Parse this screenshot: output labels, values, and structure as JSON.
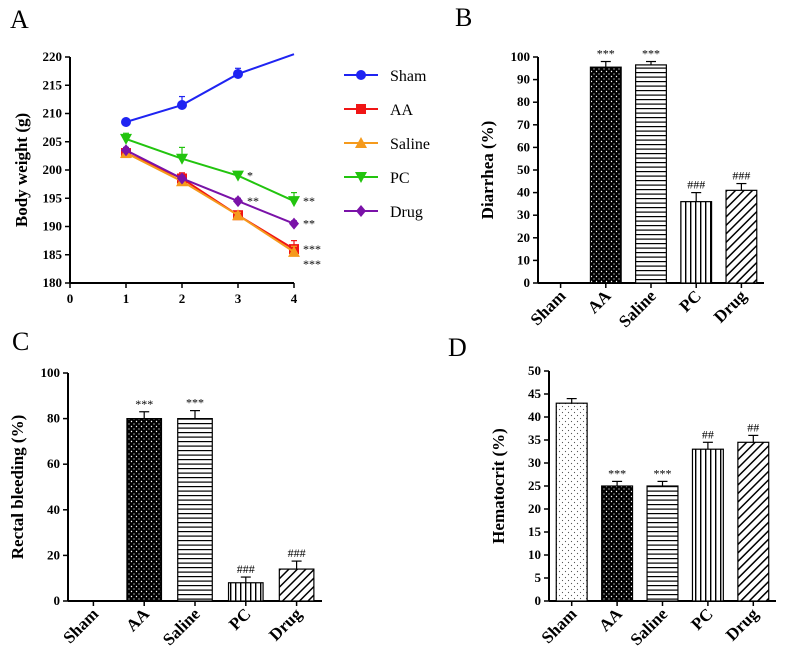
{
  "colors": {
    "Sham": "#1f24f2",
    "AA": "#f01515",
    "Saline": "#f59a1c",
    "PC": "#22c40e",
    "Drug": "#7a12a8"
  },
  "chart_data": [
    {
      "panel": "A",
      "type": "line",
      "ylabel": "Body weight (g)",
      "xlabel": "",
      "x": [
        1,
        2,
        3,
        4
      ],
      "xlim": [
        0,
        4
      ],
      "xticks": [
        "0",
        "1",
        "2",
        "3",
        "4"
      ],
      "ylim": [
        180,
        220
      ],
      "yticks": [
        "180",
        "185",
        "190",
        "195",
        "200",
        "205",
        "210",
        "215",
        "220"
      ],
      "series": [
        {
          "name": "Sham",
          "marker": "circle",
          "values": [
            208.5,
            211.5,
            217,
            220.5
          ],
          "errors": [
            0.5,
            1.5,
            1,
            0
          ],
          "sig": [
            "",
            "",
            "",
            ""
          ]
        },
        {
          "name": "AA",
          "marker": "square",
          "values": [
            203,
            198.5,
            192,
            186
          ],
          "errors": [
            0.5,
            1,
            0.5,
            1.5
          ],
          "sig": [
            "",
            "",
            "",
            "***"
          ]
        },
        {
          "name": "Saline",
          "marker": "triangle-up",
          "values": [
            203,
            198,
            192,
            185.5
          ],
          "errors": [
            0.5,
            0.5,
            0.5,
            1
          ],
          "sig": [
            "",
            "",
            "",
            "***"
          ]
        },
        {
          "name": "PC",
          "marker": "triangle-down",
          "values": [
            205.5,
            202,
            199,
            194.5
          ],
          "errors": [
            1,
            2,
            0.5,
            1.5
          ],
          "sig": [
            "",
            "",
            "*",
            "**"
          ]
        },
        {
          "name": "Drug",
          "marker": "diamond",
          "values": [
            203.5,
            198.5,
            194.5,
            190.5
          ],
          "errors": [
            0.5,
            0.5,
            0.5,
            0.5
          ],
          "sig": [
            "",
            "",
            "**",
            "**"
          ]
        }
      ]
    },
    {
      "panel": "B",
      "type": "bar",
      "ylabel": "Diarrhea (%)",
      "categories": [
        "Sham",
        "AA",
        "Saline",
        "PC",
        "Drug"
      ],
      "values": [
        0,
        95.5,
        96.5,
        36,
        41
      ],
      "errors": [
        0,
        2.5,
        1.5,
        4,
        3
      ],
      "sig": [
        "",
        "***",
        "***",
        "###",
        "###"
      ],
      "ylim": [
        0,
        100
      ],
      "yticks": [
        "0",
        "10",
        "20",
        "30",
        "40",
        "50",
        "60",
        "70",
        "80",
        "90",
        "100"
      ]
    },
    {
      "panel": "C",
      "type": "bar",
      "ylabel": "Rectal bleeding (%)",
      "categories": [
        "Sham",
        "AA",
        "Saline",
        "PC",
        "Drug"
      ],
      "values": [
        0,
        80,
        80,
        8,
        14
      ],
      "errors": [
        0,
        3,
        3.5,
        2.5,
        3.5
      ],
      "sig": [
        "",
        "***",
        "***",
        "###",
        "###"
      ],
      "ylim": [
        0,
        100
      ],
      "yticks": [
        "0",
        "20",
        "40",
        "60",
        "80",
        "100"
      ]
    },
    {
      "panel": "D",
      "type": "bar",
      "ylabel": "Hematocrit (%)",
      "categories": [
        "Sham",
        "AA",
        "Saline",
        "PC",
        "Drug"
      ],
      "values": [
        43,
        25,
        25,
        33,
        34.5
      ],
      "errors": [
        1,
        1,
        1,
        1.5,
        1.5
      ],
      "sig": [
        "",
        "***",
        "***",
        "##",
        "##"
      ],
      "ylim": [
        0,
        50
      ],
      "yticks": [
        "0",
        "5",
        "10",
        "15",
        "20",
        "25",
        "30",
        "35",
        "40",
        "45",
        "50"
      ]
    }
  ]
}
